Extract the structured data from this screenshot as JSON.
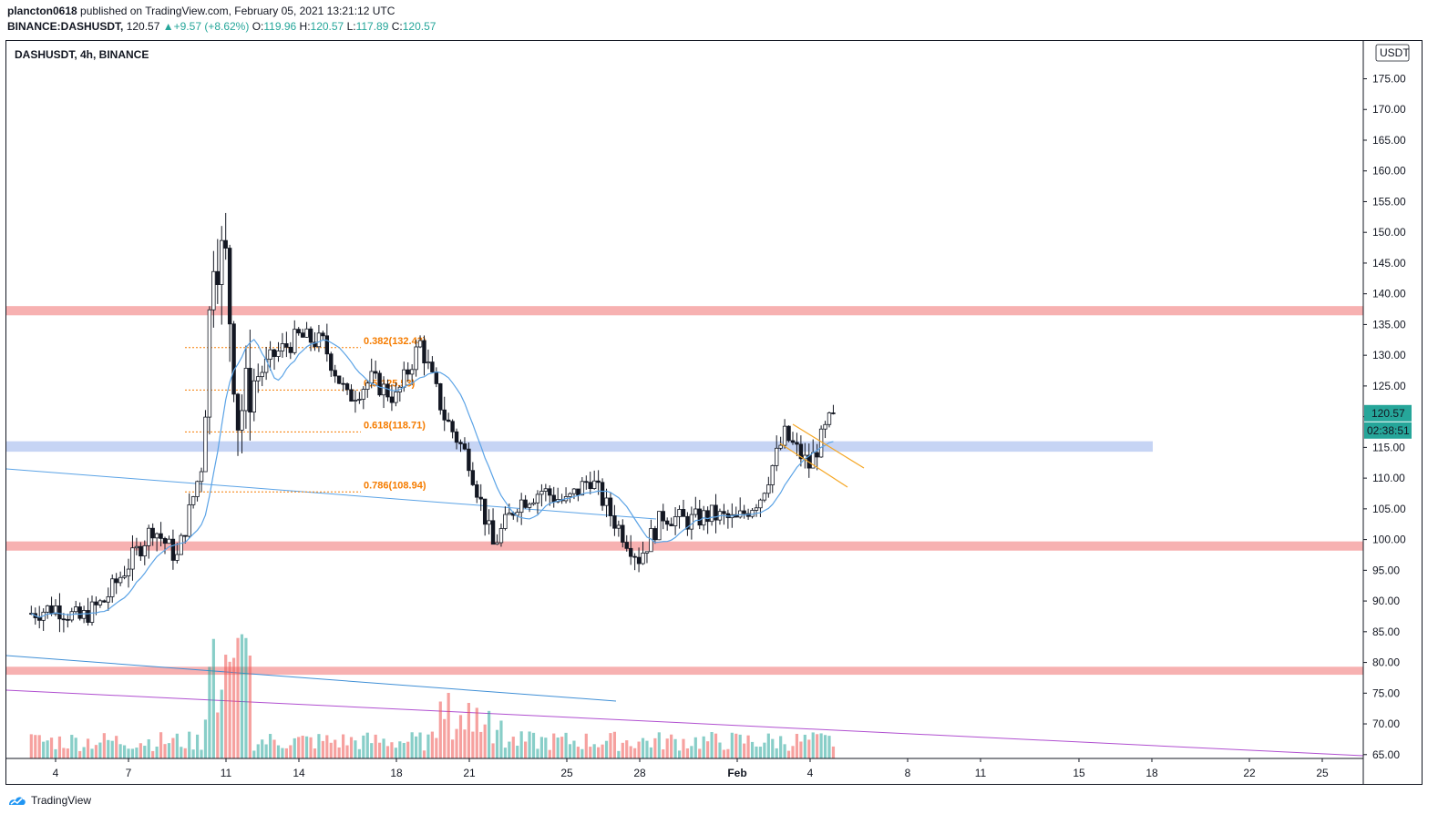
{
  "header": {
    "author": "plancton0618",
    "published_text": "published on TradingView.com, February 05, 2021 13:21:12 UTC",
    "symbol": "BINANCE:DASHUSDT,",
    "last": "120.57",
    "arrow": "▲",
    "change": "+9.57 (+8.62%)",
    "o_label": "O:",
    "o_val": "119.96",
    "h_label": "H:",
    "h_val": "120.57",
    "l_label": "L:",
    "l_val": "117.89",
    "c_label": "C:",
    "c_val": "120.57"
  },
  "legend": "DASHUSDT, 4h, BINANCE",
  "footer": {
    "brand": "TradingView"
  },
  "chart_data": {
    "type": "candlestick",
    "currency": "USDT",
    "price_axis": {
      "ticks": [
        "175.00",
        "170.00",
        "165.00",
        "160.00",
        "155.00",
        "150.00",
        "145.00",
        "140.00",
        "135.00",
        "130.00",
        "125.00",
        "120.00",
        "115.00",
        "110.00",
        "105.00",
        "100.00",
        "95.00",
        "90.00",
        "85.00",
        "80.00",
        "75.00",
        "70.00",
        "65.00"
      ],
      "ylim": [
        64,
        180
      ]
    },
    "time_axis": {
      "ticks": [
        "4",
        "7",
        "11",
        "14",
        "18",
        "21",
        "25",
        "28",
        "Feb",
        "4",
        "8",
        "11",
        "15",
        "18",
        "22",
        "25"
      ]
    },
    "last_price_label": "120.57",
    "countdown_label": "02:38:51",
    "last_price_color": "#26a69a",
    "resistance_zones": [
      {
        "price_low": 136.5,
        "price_high": 138.0,
        "color": "#f7b1b1"
      },
      {
        "price_low": 98.2,
        "price_high": 99.7,
        "color": "#f7b1b1"
      },
      {
        "price_low": 78.0,
        "price_high": 79.3,
        "color": "#f7b1b1"
      }
    ],
    "support_zone": {
      "price_low": 114.3,
      "price_high": 116.0,
      "color": "#c6d4f4"
    },
    "fibonacci": [
      {
        "label": "0.382(132.43)",
        "price": 132.43
      },
      {
        "label": "0.5(125.53)",
        "price": 125.53
      },
      {
        "label": "0.618(118.71)",
        "price": 118.71
      },
      {
        "label": "0.786(108.94)",
        "price": 108.94
      }
    ],
    "colors": {
      "up": "#26a69a",
      "down": "#ef5350",
      "ma": "#5ba3e6",
      "fib": "#f57c00",
      "channel": "#f5a623",
      "trend_purple": "#b04fd0",
      "trend_blue": "#3f8fd6"
    },
    "price_path": [
      {
        "d": "Jan 3",
        "p": 88
      },
      {
        "d": "Jan 4",
        "p": 89
      },
      {
        "d": "Jan 5",
        "p": 87
      },
      {
        "d": "Jan 6",
        "p": 90
      },
      {
        "d": "Jan 7",
        "p": 96
      },
      {
        "d": "Jan 8",
        "p": 102
      },
      {
        "d": "Jan 9",
        "p": 97
      },
      {
        "d": "Jan 10",
        "p": 112
      },
      {
        "d": "Jan 10.5",
        "p": 148
      },
      {
        "d": "Jan 11",
        "p": 145
      },
      {
        "d": "Jan 11.5",
        "p": 120
      },
      {
        "d": "Jan 12",
        "p": 125
      },
      {
        "d": "Jan 13",
        "p": 130
      },
      {
        "d": "Jan 14",
        "p": 133
      },
      {
        "d": "Jan 15",
        "p": 132
      },
      {
        "d": "Jan 16",
        "p": 123
      },
      {
        "d": "Jan 17",
        "p": 126
      },
      {
        "d": "Jan 18",
        "p": 123
      },
      {
        "d": "Jan 19",
        "p": 132
      },
      {
        "d": "Jan 20",
        "p": 120
      },
      {
        "d": "Jan 21",
        "p": 113
      },
      {
        "d": "Jan 22",
        "p": 99
      },
      {
        "d": "Jan 23",
        "p": 106
      },
      {
        "d": "Jan 24",
        "p": 108
      },
      {
        "d": "Jan 25",
        "p": 106
      },
      {
        "d": "Jan 26",
        "p": 110
      },
      {
        "d": "Jan 27",
        "p": 103
      },
      {
        "d": "Jan 28",
        "p": 97
      },
      {
        "d": "Jan 29",
        "p": 104
      },
      {
        "d": "Jan 30",
        "p": 103
      },
      {
        "d": "Jan 31",
        "p": 104
      },
      {
        "d": "Feb 1",
        "p": 103
      },
      {
        "d": "Feb 2",
        "p": 107
      },
      {
        "d": "Feb 3",
        "p": 117
      },
      {
        "d": "Feb 4",
        "p": 112
      },
      {
        "d": "Feb 5",
        "p": 120.57
      }
    ]
  }
}
